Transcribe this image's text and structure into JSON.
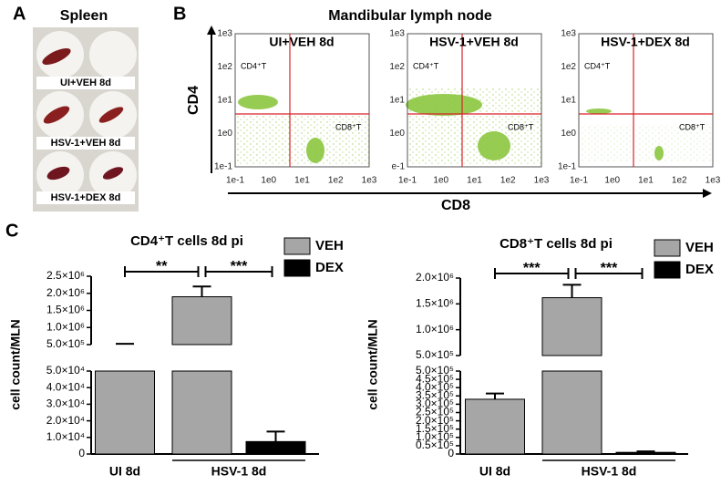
{
  "panel_a": {
    "letter": "A",
    "title": "Spleen",
    "labels": [
      "UI+VEH 8d",
      "HSV-1+VEH 8d",
      "HSV-1+DEX 8d"
    ]
  },
  "panel_b": {
    "letter": "B",
    "title": "Mandibular lymph node",
    "y_label": "CD4",
    "x_label": "CD8",
    "plots": [
      {
        "title": "UI+VEH 8d",
        "q_top_left": "CD4⁺T",
        "q_bottom_right": "CD8⁺T",
        "x_ticks": [
          "1e-1",
          "1e0",
          "1e1",
          "1e2",
          "1e3"
        ],
        "y_ticks": [
          "1e3",
          "1e2",
          "1e1",
          "1e0",
          "1e-1"
        ]
      },
      {
        "title": "HSV-1+VEH 8d",
        "q_top_left": "CD4⁺T",
        "q_bottom_right": "CD8⁺T",
        "x_ticks": [
          "1e-1",
          "1e0",
          "1e1",
          "1e2",
          "1e3"
        ],
        "y_ticks": [
          "1e3",
          "1e2",
          "1e1",
          "1e0",
          "e-1"
        ]
      },
      {
        "title": "HSV-1+DEX 8d",
        "q_top_left": "CD4⁺T",
        "q_bottom_right": "CD8⁺T",
        "x_ticks": [
          "1e-1",
          "1e0",
          "1e1",
          "1e2",
          "1e3"
        ],
        "y_ticks": [
          "1e3",
          "1e2",
          "1e1",
          "1e0",
          "1e-1"
        ]
      }
    ]
  },
  "panel_c": {
    "letter": "C"
  },
  "chart_data": [
    {
      "type": "bar",
      "title": "CD4⁺T cells 8d pi",
      "y_label": "cell count/MLN",
      "categories": [
        "UI 8d",
        "HSV-1 8d"
      ],
      "series": [
        {
          "name": "VEH",
          "color": "#a6a6a6",
          "values": [
            500000,
            1900000
          ],
          "errors": [
            25000,
            300000
          ]
        },
        {
          "name": "DEX",
          "color": "#000000",
          "values": [
            null,
            7500
          ],
          "errors": [
            null,
            6000
          ]
        }
      ],
      "comparisons": [
        "**",
        "***"
      ],
      "segments": [
        {
          "ylim": [
            0,
            50000
          ],
          "yticks": [
            0,
            {
              "value": 10000,
              "label": "1.0×10⁴"
            },
            {
              "value": 20000,
              "label": "2.0×10⁴"
            },
            {
              "value": 30000,
              "label": "3.0×10⁴"
            },
            {
              "value": 40000,
              "label": "4.0×10⁴"
            },
            {
              "value": 50000,
              "label": "5.0×10⁴"
            }
          ]
        },
        {
          "ylim": [
            500000,
            2500000
          ],
          "yticks": [
            {
              "value": 500000,
              "label": "5.0×10⁵"
            },
            {
              "value": 1000000,
              "label": "1.0×10⁶"
            },
            {
              "value": 1500000,
              "label": "1.5×10⁶"
            },
            {
              "value": 2000000,
              "label": "2.0×10⁶"
            },
            {
              "value": 2500000,
              "label": "2.5×10⁶"
            }
          ]
        }
      ]
    },
    {
      "type": "bar",
      "title": "CD8⁺T cells 8d pi",
      "y_label": "cell count/MLN",
      "categories": [
        "UI 8d",
        "HSV-1 8d"
      ],
      "series": [
        {
          "name": "VEH",
          "color": "#a6a6a6",
          "values": [
            330000,
            1620000
          ],
          "errors": [
            35000,
            250000
          ]
        },
        {
          "name": "DEX",
          "color": "#000000",
          "values": [
            null,
            10000
          ],
          "errors": [
            null,
            6000
          ]
        }
      ],
      "comparisons": [
        "***",
        "***"
      ],
      "segments": [
        {
          "ylim": [
            0,
            500000
          ],
          "yticks": [
            0,
            {
              "value": 50000,
              "label": "0.5×10⁵"
            },
            {
              "value": 100000,
              "label": "1.0×10⁵"
            },
            {
              "value": 150000,
              "label": "1.5×10⁵"
            },
            {
              "value": 200000,
              "label": "2.0×10⁵"
            },
            {
              "value": 250000,
              "label": "2.5×10⁵"
            },
            {
              "value": 300000,
              "label": "3.0×10⁵"
            },
            {
              "value": 350000,
              "label": "3.5×10⁵"
            },
            {
              "value": 400000,
              "label": "4.0×10⁵"
            },
            {
              "value": 450000,
              "label": "4.5×10⁵"
            },
            {
              "value": 500000,
              "label": "5.0×10⁵"
            }
          ]
        },
        {
          "ylim": [
            500000,
            2000000
          ],
          "yticks": [
            {
              "value": 500000,
              "label": "5.0×10⁵"
            },
            {
              "value": 1000000,
              "label": "1.0×10⁶"
            },
            {
              "value": 1500000,
              "label": "1.5×10⁶"
            },
            {
              "value": 2000000,
              "label": "2.0×10⁶"
            }
          ]
        }
      ]
    }
  ]
}
